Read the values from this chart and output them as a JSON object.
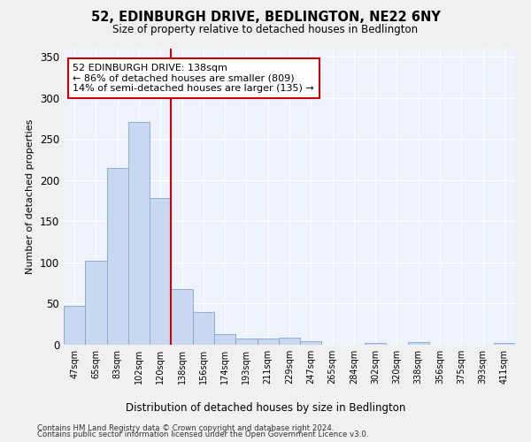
{
  "title": "52, EDINBURGH DRIVE, BEDLINGTON, NE22 6NY",
  "subtitle": "Size of property relative to detached houses in Bedlington",
  "xlabel": "Distribution of detached houses by size in Bedlington",
  "ylabel": "Number of detached properties",
  "bar_color": "#c8d8f0",
  "bar_edge_color": "#7ba7d4",
  "background_color": "#eef2fb",
  "grid_color": "#ffffff",
  "vline_color": "#cc0000",
  "vline_index": 5,
  "annotation_text": "52 EDINBURGH DRIVE: 138sqm\n← 86% of detached houses are smaller (809)\n14% of semi-detached houses are larger (135) →",
  "annotation_box_facecolor": "#ffffff",
  "annotation_box_edgecolor": "#cc0000",
  "categories": [
    "47sqm",
    "65sqm",
    "83sqm",
    "102sqm",
    "120sqm",
    "138sqm",
    "156sqm",
    "174sqm",
    "193sqm",
    "211sqm",
    "229sqm",
    "247sqm",
    "265sqm",
    "284sqm",
    "302sqm",
    "320sqm",
    "338sqm",
    "356sqm",
    "375sqm",
    "393sqm",
    "411sqm"
  ],
  "values": [
    47,
    102,
    215,
    271,
    178,
    68,
    40,
    13,
    7,
    8,
    9,
    4,
    0,
    0,
    2,
    0,
    3,
    0,
    0,
    0,
    2
  ],
  "ylim": [
    0,
    360
  ],
  "yticks": [
    0,
    50,
    100,
    150,
    200,
    250,
    300,
    350
  ],
  "fig_width": 6.0,
  "fig_height": 5.0,
  "dpi": 100,
  "footer1": "Contains HM Land Registry data © Crown copyright and database right 2024.",
  "footer2": "Contains public sector information licensed under the Open Government Licence v3.0."
}
